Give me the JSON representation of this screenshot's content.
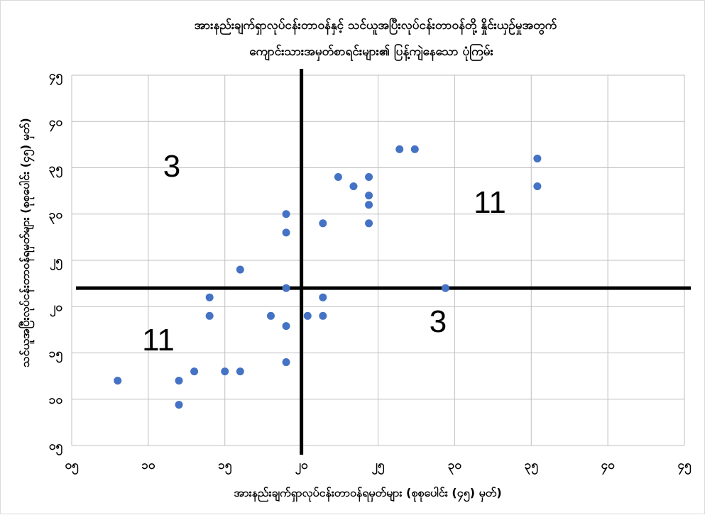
{
  "chart_data": {
    "type": "scatter",
    "title_lines": [
      "အားနည်းချက်ရှာလုပ်ငန်းတာဝန်နှင့် သင်ယူအပြီးလုပ်ငန်းတာဝန်တို့ နှိုင်းယှဉ်မှုအတွက်",
      "ကျောင်းသားအမှတ်စာရင်းများ၏ ပြန့်ကျဲနေသော ပုံကြမ်း"
    ],
    "xlabel": "အားနည်းချက်ရှာလုပ်ငန်းတာဝန်ရမှတ်များ (စုစုပေါင်း (၄၅) မှတ်)",
    "ylabel": "သင်ယူအပြီးလုပ်ငန်းတာဝန်ရမှတ်များ (စုစုပေါင်း (၄၅) မှတ်)",
    "xlim": [
      5,
      45
    ],
    "ylim": [
      5,
      45
    ],
    "x_ticks": [
      5,
      10,
      15,
      20,
      25,
      30,
      35,
      40,
      45
    ],
    "x_tick_labels": [
      "၀၅",
      "၁၀",
      "၁၅",
      "၂၀",
      "၂၅",
      "၃၀",
      "၃၅",
      "၄၀",
      "၄၅"
    ],
    "y_ticks": [
      5,
      10,
      15,
      20,
      25,
      30,
      35,
      40,
      45
    ],
    "y_tick_labels": [
      "၀၅",
      "၁၀",
      "၁၅",
      "၂၀",
      "၂၅",
      "၃၀",
      "၃၅",
      "၄၀",
      "၄၅"
    ],
    "grid": true,
    "marker_color": "#4472C4",
    "points": [
      {
        "x": 8,
        "y": 12
      },
      {
        "x": 12,
        "y": 12
      },
      {
        "x": 12,
        "y": 9.4
      },
      {
        "x": 13,
        "y": 13
      },
      {
        "x": 14,
        "y": 19
      },
      {
        "x": 14,
        "y": 21
      },
      {
        "x": 15,
        "y": 13
      },
      {
        "x": 16,
        "y": 13
      },
      {
        "x": 16,
        "y": 24
      },
      {
        "x": 18,
        "y": 19
      },
      {
        "x": 19,
        "y": 14
      },
      {
        "x": 19,
        "y": 17.9
      },
      {
        "x": 19,
        "y": 22
      },
      {
        "x": 19,
        "y": 28
      },
      {
        "x": 19,
        "y": 30
      },
      {
        "x": 20.4,
        "y": 19
      },
      {
        "x": 21.4,
        "y": 19
      },
      {
        "x": 21.4,
        "y": 21
      },
      {
        "x": 21.4,
        "y": 29
      },
      {
        "x": 22.4,
        "y": 34
      },
      {
        "x": 23.4,
        "y": 33
      },
      {
        "x": 24.4,
        "y": 29
      },
      {
        "x": 24.4,
        "y": 31
      },
      {
        "x": 24.4,
        "y": 32
      },
      {
        "x": 24.4,
        "y": 34
      },
      {
        "x": 26.4,
        "y": 37
      },
      {
        "x": 27.4,
        "y": 37
      },
      {
        "x": 29.4,
        "y": 22
      },
      {
        "x": 35.4,
        "y": 33
      },
      {
        "x": 35.4,
        "y": 36
      }
    ],
    "divider_x": 20,
    "divider_y": 22,
    "quadrant_counts": {
      "top_left": "3",
      "top_right": "11",
      "bottom_left": "11",
      "bottom_right": "3"
    }
  }
}
